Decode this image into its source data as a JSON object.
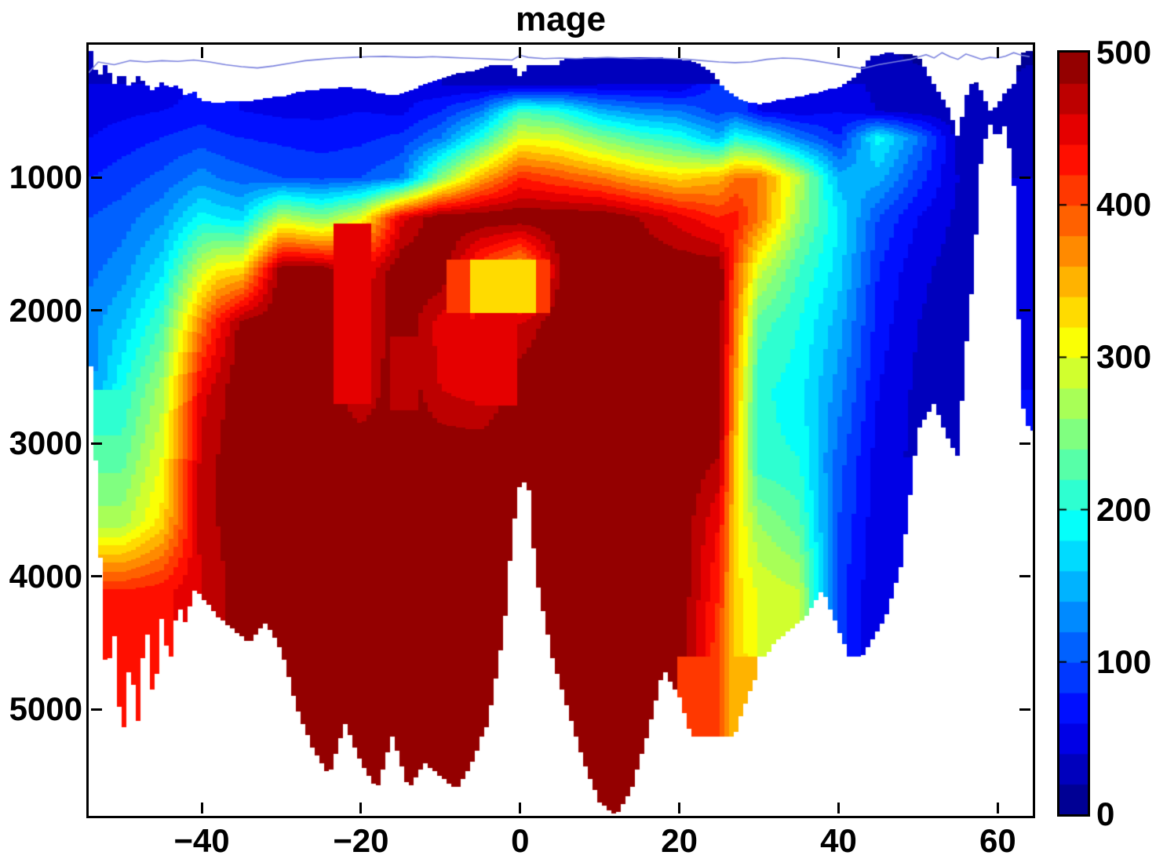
{
  "chart": {
    "background": "#ffffff",
    "axis_color": "#000000",
    "text_color": "#000000"
  },
  "chart_data": {
    "type": "heatmap",
    "subtype": "filled-contour-section",
    "title": "mage",
    "xlabel": "",
    "ylabel": "",
    "xlim": [
      -54.2,
      64.4
    ],
    "ylim": [
      0,
      5800
    ],
    "y_axis_direction": "down",
    "colormap": "jet",
    "clim": [
      0,
      500
    ],
    "contour_step": 20,
    "no_data_color": "#ffffff",
    "x_ticks": [
      -40,
      -20,
      0,
      20,
      40,
      60
    ],
    "x_tick_labels": [
      "−40",
      "−20",
      "0",
      "20",
      "40",
      "60"
    ],
    "y_ticks": [
      1000,
      2000,
      3000,
      4000,
      5000
    ],
    "y_tick_labels": [
      "1000",
      "2000",
      "3000",
      "4000",
      "5000"
    ],
    "colorbar_ticks": [
      0,
      100,
      200,
      300,
      400,
      500
    ],
    "colorbar_tick_labels": [
      "0",
      "100",
      "200",
      "300",
      "400",
      "500"
    ],
    "x": [
      -54,
      -50,
      -45,
      -40,
      -38,
      -35,
      -30,
      -25,
      -20,
      -15,
      -10,
      -5,
      0,
      5,
      10,
      15,
      20,
      25,
      27,
      30,
      35,
      40,
      45,
      50,
      55,
      60,
      64
    ],
    "y": [
      0,
      150,
      300,
      500,
      700,
      1000,
      1300,
      1700,
      2100,
      2600,
      3100,
      3600,
      4100,
      4600,
      5200,
      5800
    ],
    "values": [
      [
        20,
        null,
        null,
        null,
        null,
        null,
        null,
        null,
        null,
        null,
        null,
        null,
        null,
        null,
        null,
        null,
        null,
        null,
        null,
        null,
        null,
        null,
        20,
        15,
        null,
        null,
        15
      ],
      [
        30,
        25,
        null,
        null,
        null,
        null,
        null,
        null,
        null,
        null,
        null,
        null,
        null,
        null,
        30,
        30,
        30,
        null,
        null,
        null,
        null,
        null,
        25,
        20,
        null,
        15,
        20
      ],
      [
        40,
        40,
        40,
        null,
        null,
        null,
        null,
        null,
        null,
        null,
        40,
        35,
        30,
        35,
        40,
        40,
        40,
        null,
        null,
        null,
        null,
        null,
        30,
        25,
        null,
        20,
        25
      ],
      [
        50,
        55,
        60,
        70,
        65,
        60,
        55,
        55,
        60,
        55,
        80,
        120,
        220,
        200,
        150,
        130,
        120,
        90,
        100,
        60,
        50,
        60,
        40,
        30,
        25,
        20,
        30
      ],
      [
        60,
        70,
        80,
        90,
        85,
        80,
        75,
        70,
        75,
        85,
        120,
        200,
        300,
        290,
        250,
        220,
        200,
        150,
        200,
        180,
        120,
        80,
        190,
        120,
        30,
        null,
        35
      ],
      [
        80,
        90,
        105,
        130,
        120,
        110,
        100,
        95,
        100,
        120,
        250,
        350,
        420,
        400,
        380,
        350,
        330,
        350,
        380,
        380,
        280,
        150,
        150,
        90,
        40,
        null,
        40
      ],
      [
        100,
        110,
        135,
        190,
        180,
        170,
        280,
        250,
        300,
        450,
        500,
        500,
        500,
        500,
        500,
        480,
        450,
        420,
        430,
        380,
        260,
        180,
        100,
        60,
        35,
        null,
        45
      ],
      [
        115,
        130,
        175,
        290,
        320,
        330,
        500,
        500,
        440,
        500,
        500,
        400,
        340,
        480,
        500,
        500,
        500,
        500,
        400,
        290,
        220,
        170,
        80,
        45,
        30,
        null,
        50
      ],
      [
        130,
        160,
        220,
        380,
        430,
        490,
        500,
        500,
        450,
        500,
        450,
        440,
        460,
        500,
        500,
        500,
        500,
        500,
        380,
        230,
        200,
        150,
        70,
        40,
        30,
        null,
        55
      ],
      [
        null,
        200,
        270,
        450,
        470,
        500,
        500,
        500,
        460,
        500,
        460,
        450,
        500,
        500,
        500,
        500,
        500,
        500,
        360,
        205,
        190,
        130,
        60,
        35,
        30,
        null,
        60
      ],
      [
        null,
        230,
        300,
        470,
        480,
        500,
        500,
        500,
        500,
        500,
        500,
        500,
        500,
        500,
        500,
        500,
        500,
        480,
        340,
        205,
        200,
        110,
        50,
        null,
        null,
        null,
        null
      ],
      [
        null,
        270,
        330,
        470,
        480,
        500,
        500,
        500,
        500,
        500,
        500,
        500,
        null,
        500,
        500,
        500,
        500,
        440,
        330,
        260,
        230,
        100,
        45,
        null,
        null,
        null,
        null
      ],
      [
        null,
        420,
        430,
        460,
        470,
        500,
        500,
        500,
        500,
        500,
        500,
        500,
        null,
        500,
        500,
        500,
        500,
        420,
        330,
        295,
        280,
        90,
        40,
        null,
        null,
        null,
        null
      ],
      [
        null,
        430,
        null,
        null,
        null,
        500,
        500,
        500,
        500,
        500,
        500,
        500,
        null,
        500,
        500,
        500,
        null,
        400,
        340,
        null,
        null,
        null,
        null,
        null,
        null,
        null,
        null
      ],
      [
        null,
        440,
        null,
        null,
        null,
        null,
        null,
        500,
        500,
        500,
        500,
        null,
        null,
        null,
        500,
        500,
        null,
        null,
        null,
        null,
        null,
        null,
        null,
        null,
        null,
        null,
        null
      ],
      [
        null,
        null,
        null,
        null,
        null,
        null,
        null,
        null,
        null,
        null,
        null,
        null,
        null,
        null,
        null,
        null,
        null,
        null,
        null,
        null,
        null,
        null,
        null,
        null,
        null,
        null,
        null
      ]
    ],
    "mask_lat": [
      -54,
      -53,
      -52,
      -51,
      -50,
      -49,
      -48,
      -47,
      -46,
      -45,
      -44,
      -43,
      -42,
      -41,
      -40,
      -38,
      -36,
      -34,
      -32,
      -30,
      -28,
      -26,
      -24,
      -22,
      -20,
      -18,
      -16,
      -14,
      -12,
      -10,
      -8,
      -6,
      -4,
      -2,
      -1,
      0,
      1,
      2,
      4,
      6,
      8,
      10,
      12,
      14,
      16,
      18,
      20,
      22,
      24,
      26,
      28,
      30,
      32,
      34,
      36,
      38,
      40,
      42,
      44,
      46,
      48,
      50,
      52,
      54,
      55,
      56,
      57,
      58,
      59,
      60,
      61,
      62,
      63,
      64
    ],
    "seafloor_depth": [
      2300,
      3500,
      4800,
      4400,
      5300,
      4600,
      5100,
      4300,
      5000,
      4300,
      4700,
      4200,
      4350,
      4100,
      4150,
      4300,
      4400,
      4500,
      4350,
      4550,
      5000,
      5300,
      5500,
      5100,
      5400,
      5600,
      5200,
      5600,
      5400,
      5500,
      5600,
      5400,
      5100,
      4400,
      3700,
      3300,
      3280,
      4000,
      4600,
      5000,
      5400,
      5700,
      5800,
      5600,
      5200,
      4700,
      4900,
      5300,
      5600,
      5400,
      5000,
      4700,
      4500,
      4400,
      4300,
      4100,
      4400,
      4700,
      4500,
      4300,
      3900,
      2900,
      2700,
      3000,
      3100,
      2300,
      1700,
      800,
      600,
      700,
      600,
      1000,
      2700,
      2900
    ],
    "surface_gap_depth": [
      30,
      260,
      140,
      300,
      200,
      330,
      230,
      300,
      350,
      280,
      320,
      300,
      380,
      350,
      420,
      440,
      420,
      430,
      400,
      390,
      360,
      340,
      330,
      320,
      330,
      360,
      380,
      350,
      300,
      260,
      220,
      200,
      160,
      140,
      150,
      240,
      160,
      140,
      120,
      110,
      100,
      90,
      90,
      90,
      90,
      100,
      110,
      130,
      200,
      350,
      420,
      450,
      420,
      400,
      380,
      350,
      320,
      250,
      90,
      60,
      70,
      80,
      300,
      500,
      700,
      400,
      250,
      350,
      500,
      450,
      350,
      300,
      60,
      50
    ],
    "anomaly_patches": [
      {
        "lat": [
          -23.5,
          -19
        ],
        "depth": [
          1350,
          2700
        ],
        "value": 440
      },
      {
        "lat": [
          -16.5,
          -13
        ],
        "depth": [
          2200,
          2750
        ],
        "value": 460
      },
      {
        "lat": [
          -9,
          4
        ],
        "depth": [
          1620,
          2020
        ],
        "value": 400
      },
      {
        "lat": [
          -6.5,
          2
        ],
        "depth": [
          1620,
          2020
        ],
        "value": 330
      },
      {
        "lat": [
          -5.5,
          -0.5
        ],
        "depth": [
          2020,
          2720
        ],
        "value": 445
      }
    ],
    "surface_line": {
      "color": "#7b82de",
      "points": [
        [
          -54.2,
          210
        ],
        [
          -53,
          130
        ],
        [
          -51,
          150
        ],
        [
          -49,
          120
        ],
        [
          -47,
          130
        ],
        [
          -45,
          120
        ],
        [
          -43,
          125
        ],
        [
          -41,
          115
        ],
        [
          -39,
          130
        ],
        [
          -37,
          150
        ],
        [
          -35,
          165
        ],
        [
          -33,
          175
        ],
        [
          -31,
          160
        ],
        [
          -29,
          140
        ],
        [
          -27,
          120
        ],
        [
          -25,
          110
        ],
        [
          -23,
          100
        ],
        [
          -21,
          95
        ],
        [
          -19,
          90
        ],
        [
          -17,
          88
        ],
        [
          -15,
          92
        ],
        [
          -13,
          95
        ],
        [
          -11,
          90
        ],
        [
          -9,
          95
        ],
        [
          -7,
          100
        ],
        [
          -5,
          105
        ],
        [
          -3,
          110
        ],
        [
          -1,
          115
        ],
        [
          0,
          80
        ],
        [
          1,
          95
        ],
        [
          3,
          105
        ],
        [
          5,
          100
        ],
        [
          7,
          105
        ],
        [
          9,
          100
        ],
        [
          11,
          95
        ],
        [
          13,
          100
        ],
        [
          15,
          105
        ],
        [
          17,
          100
        ],
        [
          19,
          105
        ],
        [
          21,
          110
        ],
        [
          23,
          120
        ],
        [
          25,
          130
        ],
        [
          27,
          135
        ],
        [
          29,
          130
        ],
        [
          31,
          110
        ],
        [
          33,
          100
        ],
        [
          35,
          105
        ],
        [
          37,
          120
        ],
        [
          39,
          140
        ],
        [
          41,
          160
        ],
        [
          43,
          180
        ],
        [
          45,
          150
        ],
        [
          47,
          130
        ],
        [
          49,
          110
        ],
        [
          51,
          75
        ],
        [
          52,
          100
        ],
        [
          53,
          60
        ],
        [
          54,
          90
        ],
        [
          55,
          110
        ],
        [
          56,
          70
        ],
        [
          57,
          90
        ],
        [
          58,
          110
        ],
        [
          59,
          95
        ],
        [
          60,
          100
        ],
        [
          61,
          85
        ],
        [
          62,
          60
        ],
        [
          63,
          80
        ],
        [
          64,
          90
        ]
      ]
    }
  }
}
